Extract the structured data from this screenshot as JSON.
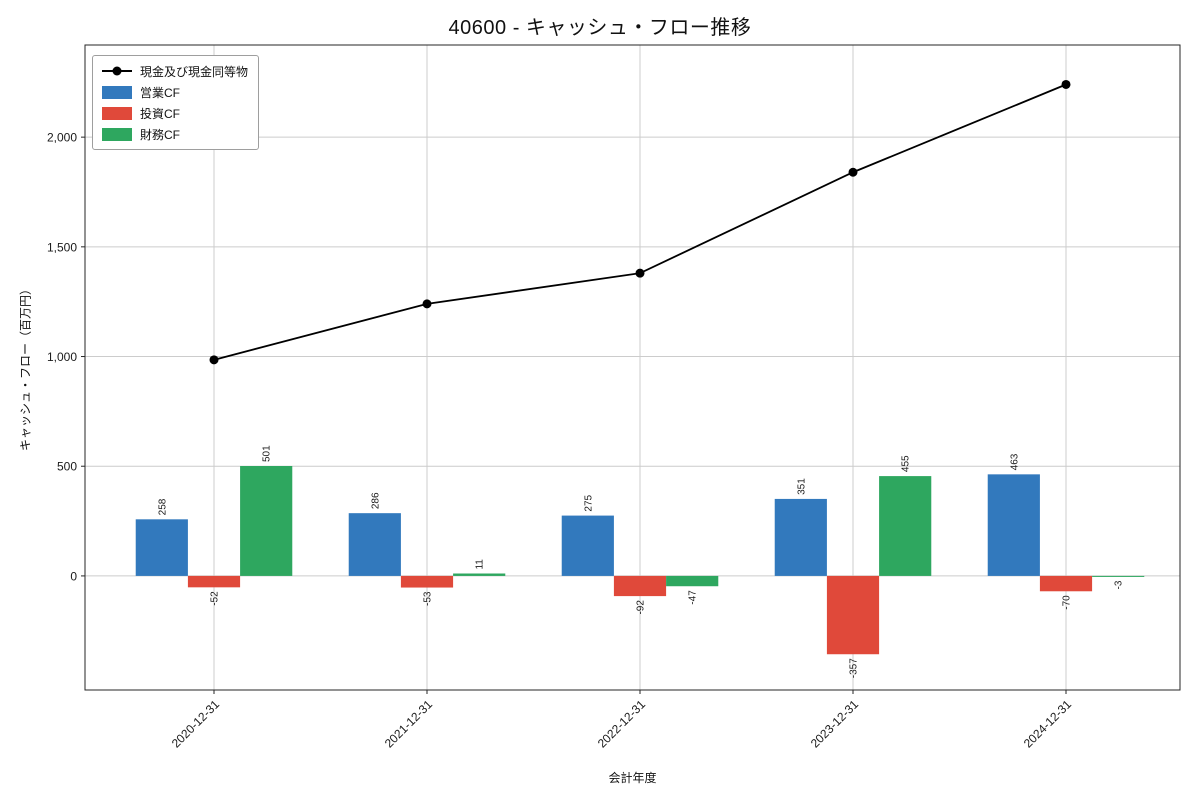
{
  "title": "40600 - キャッシュ・フロー推移",
  "axes": {
    "x_label": "会計年度",
    "y_label": "キャッシュ・フロー（百万円）",
    "y_ticks": [
      0,
      500,
      1000,
      1500,
      2000
    ],
    "y_tick_labels": [
      "0",
      "500",
      "1,000",
      "1,500",
      "2,000"
    ]
  },
  "legend": {
    "position": "upper left",
    "items": [
      {
        "label": "現金及び現金同等物",
        "marker": "line"
      },
      {
        "label": "営業CF",
        "marker": "patch"
      },
      {
        "label": "投資CF",
        "marker": "patch"
      },
      {
        "label": "財務CF",
        "marker": "patch"
      }
    ]
  },
  "chart_data": {
    "type": "bar",
    "title": "40600 - キャッシュ・フロー推移",
    "xlabel": "会計年度",
    "ylabel": "キャッシュ・フロー（百万円）",
    "categories": [
      "2020-12-31",
      "2021-12-31",
      "2022-12-31",
      "2023-12-31",
      "2024-12-31"
    ],
    "series": [
      {
        "name": "営業CF",
        "type": "bar",
        "color": "#3279bd",
        "values": [
          258,
          286,
          275,
          351,
          463
        ]
      },
      {
        "name": "投資CF",
        "type": "bar",
        "color": "#e0493a",
        "values": [
          -52,
          -53,
          -92,
          -357,
          -70
        ]
      },
      {
        "name": "財務CF",
        "type": "bar",
        "color": "#2ea75f",
        "values": [
          501,
          11,
          -47,
          455,
          -3
        ]
      }
    ],
    "line_series": {
      "name": "現金及び現金同等物",
      "color": "#000000",
      "values": [
        985,
        1240,
        1380,
        1840,
        2240
      ]
    },
    "ylim": [
      -520,
      2420
    ],
    "grid": true,
    "grid_color": "#cccccc",
    "legend_position": "upper left",
    "bar_value_labels": true
  }
}
